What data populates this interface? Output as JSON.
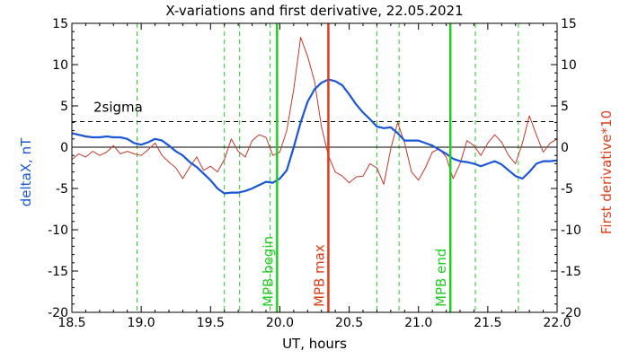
{
  "chart_data": {
    "type": "line",
    "title": "X-variations and first derivative, 22.05.2021",
    "xlabel": "UT, hours",
    "ylabel_left": "deltaX, nT",
    "ylabel_right": "First derivative*10",
    "xlim": [
      18.5,
      22.0
    ],
    "ylim": [
      -20,
      15
    ],
    "x_ticks": [
      "18.5",
      "19.0",
      "19.5",
      "20.0",
      "20.5",
      "21.0",
      "21.5",
      "22.0"
    ],
    "y_ticks": [
      "-20",
      "-15",
      "-10",
      "-5",
      "0",
      "5",
      "10",
      "15"
    ],
    "grid": false,
    "colors": {
      "deltaX": "#1a56d6",
      "derivative": "#c0392b",
      "mpb_begin_end": "#22cc22",
      "mpb_max": "#e03c1a",
      "dashed_green": "#22cc22",
      "sigma": "#000000",
      "zero": "#000000",
      "left_axis_label": "#1a56d6",
      "right_axis_label": "#e03c1a"
    },
    "sigma": {
      "label": "2sigma",
      "value": 3.1
    },
    "vertical_markers": [
      {
        "x": 19.98,
        "label": "MPB begin",
        "color": "#22cc22",
        "style": "solid"
      },
      {
        "x": 20.35,
        "label": "MPB max",
        "color": "#e03c1a",
        "style": "solid"
      },
      {
        "x": 21.23,
        "label": "MPB end",
        "color": "#22cc22",
        "style": "solid"
      }
    ],
    "dashed_lines_x": [
      18.97,
      19.6,
      19.71,
      19.93,
      20.7,
      20.86,
      21.41,
      21.72
    ],
    "series": [
      {
        "key": "deltaX",
        "x": [
          18.5,
          18.55,
          18.6,
          18.65,
          18.7,
          18.75,
          18.8,
          18.85,
          18.9,
          18.95,
          19.0,
          19.05,
          19.1,
          19.15,
          19.2,
          19.25,
          19.3,
          19.35,
          19.4,
          19.45,
          19.5,
          19.55,
          19.6,
          19.65,
          19.7,
          19.75,
          19.8,
          19.85,
          19.9,
          19.95,
          20.0,
          20.05,
          20.1,
          20.15,
          20.2,
          20.25,
          20.3,
          20.35,
          20.4,
          20.45,
          20.5,
          20.55,
          20.6,
          20.65,
          20.7,
          20.75,
          20.8,
          20.85,
          20.9,
          20.95,
          21.0,
          21.05,
          21.1,
          21.15,
          21.2,
          21.25,
          21.3,
          21.35,
          21.4,
          21.45,
          21.5,
          21.55,
          21.6,
          21.65,
          21.7,
          21.75,
          21.8,
          21.85,
          21.9,
          21.95,
          22.0
        ],
        "y": [
          1.7,
          1.5,
          1.3,
          1.2,
          1.2,
          1.3,
          1.2,
          1.2,
          1.0,
          0.5,
          0.3,
          0.6,
          1.0,
          0.8,
          0.2,
          -0.5,
          -1.0,
          -1.8,
          -2.4,
          -3.2,
          -4.0,
          -5.0,
          -5.6,
          -5.5,
          -5.5,
          -5.3,
          -5.0,
          -4.6,
          -4.2,
          -4.3,
          -3.8,
          -2.8,
          0.0,
          3.0,
          5.5,
          7.0,
          7.8,
          8.2,
          8.0,
          7.5,
          6.4,
          5.2,
          4.2,
          3.4,
          2.5,
          2.3,
          2.4,
          1.7,
          0.8,
          0.8,
          0.8,
          0.5,
          0.2,
          -0.3,
          -0.8,
          -1.4,
          -1.7,
          -1.8,
          -2.0,
          -2.3,
          -2.0,
          -1.7,
          -2.1,
          -2.8,
          -3.5,
          -3.8,
          -3.0,
          -2.0,
          -1.7,
          -1.7,
          -1.6
        ]
      },
      {
        "key": "derivative",
        "x": [
          18.5,
          18.55,
          18.6,
          18.65,
          18.7,
          18.75,
          18.8,
          18.85,
          18.9,
          18.95,
          19.0,
          19.05,
          19.1,
          19.15,
          19.2,
          19.25,
          19.3,
          19.35,
          19.4,
          19.45,
          19.5,
          19.55,
          19.6,
          19.65,
          19.7,
          19.75,
          19.8,
          19.85,
          19.9,
          19.95,
          20.0,
          20.05,
          20.1,
          20.15,
          20.2,
          20.25,
          20.3,
          20.35,
          20.4,
          20.45,
          20.5,
          20.55,
          20.6,
          20.65,
          20.7,
          20.75,
          20.8,
          20.85,
          20.9,
          20.95,
          21.0,
          21.05,
          21.1,
          21.15,
          21.2,
          21.25,
          21.3,
          21.35,
          21.4,
          21.45,
          21.5,
          21.55,
          21.6,
          21.65,
          21.7,
          21.75,
          21.8,
          21.85,
          21.9,
          21.95,
          22.0
        ],
        "y": [
          -1.5,
          -0.8,
          -1.2,
          -0.5,
          -1.0,
          -0.6,
          0.2,
          -0.8,
          -0.5,
          -0.8,
          -1.0,
          -0.3,
          0.5,
          -1.0,
          -1.8,
          -2.5,
          -3.8,
          -2.4,
          -1.2,
          -2.8,
          -2.3,
          -3.0,
          -1.5,
          1.0,
          -0.5,
          -1.2,
          0.8,
          1.5,
          1.2,
          -1.0,
          -0.6,
          2.0,
          7.0,
          13.3,
          11.0,
          8.0,
          2.5,
          -1.0,
          -3.0,
          -3.5,
          -4.3,
          -3.6,
          -3.5,
          -2.0,
          -2.5,
          -4.5,
          -0.2,
          3.0,
          0.5,
          -3.0,
          -4.0,
          -2.5,
          -0.6,
          -0.2,
          -1.2,
          -3.8,
          -2.0,
          0.8,
          0.2,
          -1.0,
          0.5,
          1.5,
          0.6,
          -1.0,
          -2.0,
          0.5,
          3.8,
          1.5,
          -0.6,
          0.5,
          1.0
        ]
      }
    ]
  }
}
